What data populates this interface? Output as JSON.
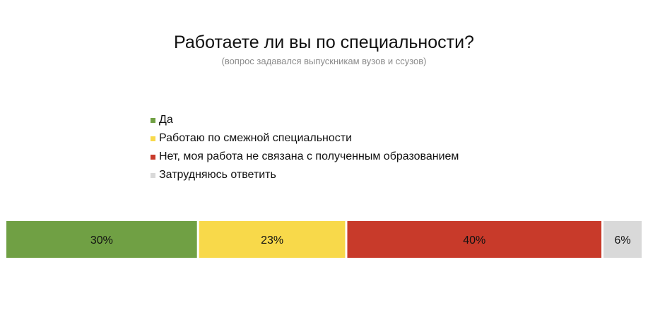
{
  "chart_data": {
    "type": "bar",
    "orientation": "horizontal-stacked-100",
    "title": "Работаете ли вы по специальности?",
    "subtitle": "(вопрос задавался выпускникам вузов и ссузов)",
    "legend_position": "top",
    "grid": false,
    "series": [
      {
        "name": "Да",
        "value": 30,
        "label": "30%",
        "color": "#70a044"
      },
      {
        "name": "Работаю по смежной специальности",
        "value": 23,
        "label": "23%",
        "color": "#f8d94a"
      },
      {
        "name": "Нет, моя работа не связана с полученным образованием",
        "value": 40,
        "label": "40%",
        "color": "#c83a2a"
      },
      {
        "name": "Затрудняюсь ответить",
        "value": 6,
        "label": "6%",
        "color": "#d9d9d9"
      }
    ]
  }
}
